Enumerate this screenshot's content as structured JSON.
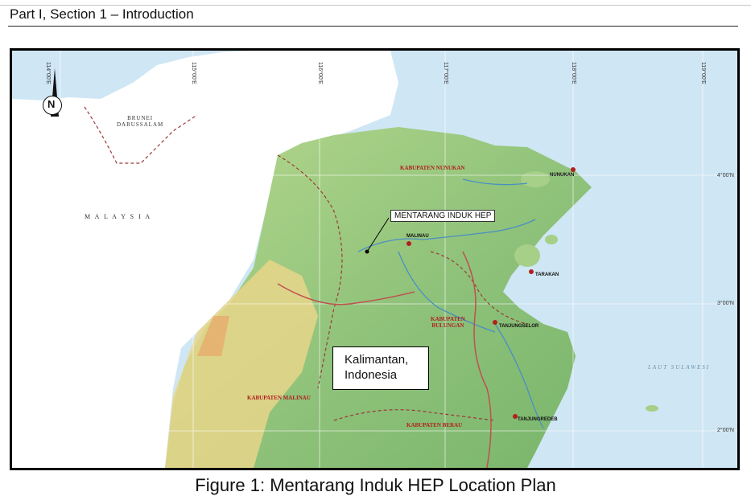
{
  "header": {
    "section_title": "Part I, Section 1 – Introduction"
  },
  "map": {
    "north_arrow_letter": "N",
    "longitudes": [
      "114°00'E",
      "115°00'E",
      "116°00'E",
      "117°00'E",
      "118°00'E",
      "119°00'E"
    ],
    "latitudes": [
      "4°00'N",
      "3°00'N",
      "2°00'N"
    ],
    "countries": {
      "brunei_line1": "BRUNEI",
      "brunei_line2": "DARUSSALAM",
      "malaysia": "M A L A Y S I A"
    },
    "regencies": {
      "nunukan": "KABUPATEN NUNUKAN",
      "bulungan_line1": "KABUPATEN",
      "bulungan_line2": "BULUNGAN",
      "malinau": "KABUPATEN MALINAU",
      "berau": "KABUPATEN BERAU"
    },
    "towns": {
      "nunukan": "NUNUKAN",
      "malinau": "MALINAU",
      "tarakan": "TARAKAN",
      "tanjungselor": "TANJUNGSELOR",
      "tanjungredeb": "TANJUNGREDEB"
    },
    "sea": "LAUT SULAWESI",
    "hep_label": "MENTARANG INDUK HEP",
    "region_line1": "Kalimantan,",
    "region_line2": "Indonesia",
    "colors": {
      "sea": "#cfe6f4",
      "lowland": "#8fc27a",
      "highland": "#e7d68a",
      "river": "#4a8fc4",
      "boundary": "#9a3b3b"
    }
  },
  "caption": "Figure 1: Mentarang Induk HEP Location Plan"
}
